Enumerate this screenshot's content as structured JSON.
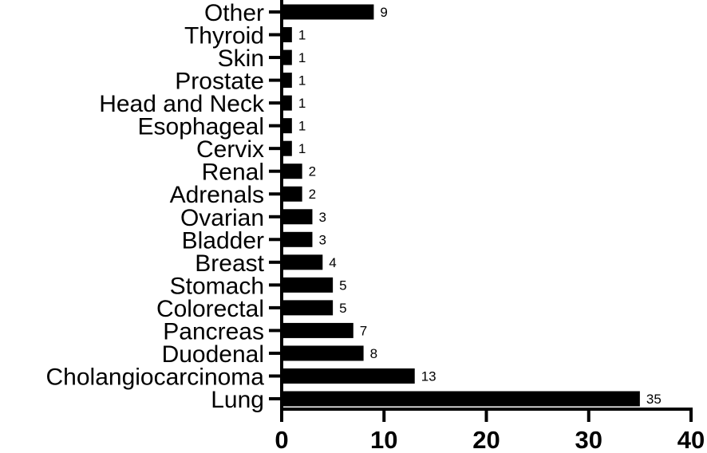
{
  "chart_data": {
    "type": "bar",
    "orientation": "horizontal",
    "categories": [
      "Other",
      "Thyroid",
      "Skin",
      "Prostate",
      "Head and Neck",
      "Esophageal",
      "Cervix",
      "Renal",
      "Adrenals",
      "Ovarian",
      "Bladder",
      "Breast",
      "Stomach",
      "Colorectal",
      "Pancreas",
      "Duodenal",
      "Cholangiocarcinoma",
      "Lung"
    ],
    "values": [
      9,
      1,
      1,
      1,
      1,
      1,
      1,
      2,
      2,
      3,
      3,
      4,
      5,
      5,
      7,
      8,
      13,
      35
    ],
    "xlim": [
      0,
      40
    ],
    "xticks": [
      0,
      10,
      20,
      30,
      40
    ],
    "bar_color": "#000000",
    "grid": false,
    "title": "",
    "xlabel": "",
    "ylabel": ""
  }
}
